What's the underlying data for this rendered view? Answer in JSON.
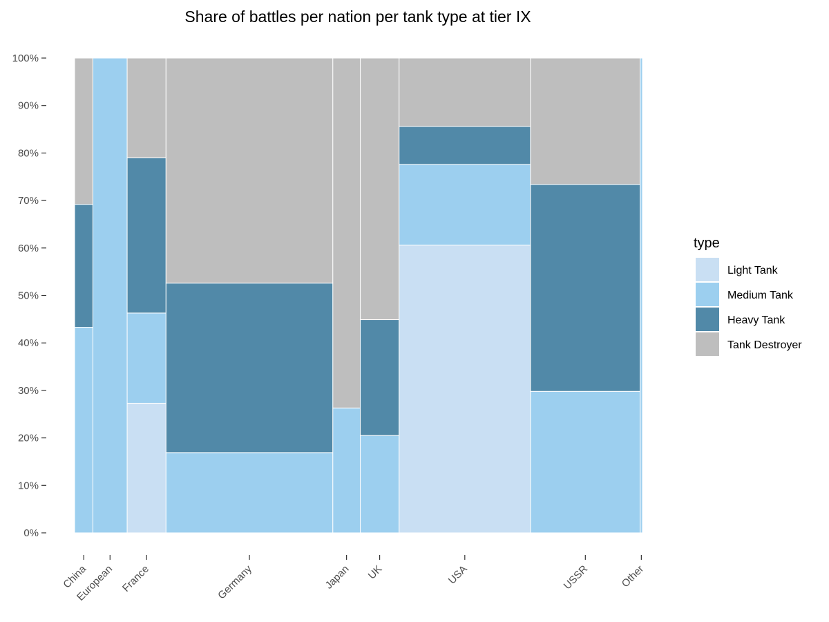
{
  "chart_data": {
    "type": "mosaic",
    "title": "Share of battles per nation per tank type at tier IX",
    "y_ticks": [
      "0%",
      "10%",
      "20%",
      "30%",
      "40%",
      "50%",
      "60%",
      "70%",
      "80%",
      "90%",
      "100%"
    ],
    "ylim": [
      0,
      100
    ],
    "grid": false,
    "legend": {
      "title": "type",
      "position": "right",
      "entries": [
        "Light Tank",
        "Medium Tank",
        "Heavy Tank",
        "Tank Destroyer"
      ]
    },
    "colors": {
      "Light Tank": "#c9dff3",
      "Medium Tank": "#9ccfef",
      "Heavy Tank": "#5189a8",
      "Tank Destroyer": "#bebebe"
    },
    "nations": [
      {
        "name": "China",
        "share": 3.2,
        "values": {
          "Light Tank": 0,
          "Medium Tank": 43.3,
          "Heavy Tank": 25.9,
          "Tank Destroyer": 30.8
        }
      },
      {
        "name": "European",
        "share": 6.0,
        "values": {
          "Light Tank": 0,
          "Medium Tank": 100,
          "Heavy Tank": 0,
          "Tank Destroyer": 0
        }
      },
      {
        "name": "France",
        "share": 6.8,
        "values": {
          "Light Tank": 27.3,
          "Medium Tank": 19.0,
          "Heavy Tank": 32.7,
          "Tank Destroyer": 21.0
        }
      },
      {
        "name": "Germany",
        "share": 29.2,
        "values": {
          "Light Tank": 0,
          "Medium Tank": 16.9,
          "Heavy Tank": 35.7,
          "Tank Destroyer": 47.4
        }
      },
      {
        "name": "Japan",
        "share": 4.8,
        "values": {
          "Light Tank": 0,
          "Medium Tank": 26.3,
          "Heavy Tank": 0,
          "Tank Destroyer": 73.7
        }
      },
      {
        "name": "UK",
        "share": 6.8,
        "values": {
          "Light Tank": 0,
          "Medium Tank": 20.5,
          "Heavy Tank": 24.4,
          "Tank Destroyer": 55.1
        }
      },
      {
        "name": "USA",
        "share": 23.0,
        "values": {
          "Light Tank": 60.6,
          "Medium Tank": 17.0,
          "Heavy Tank": 8.0,
          "Tank Destroyer": 14.4
        }
      },
      {
        "name": "USSR",
        "share": 19.2,
        "values": {
          "Light Tank": 0,
          "Medium Tank": 29.8,
          "Heavy Tank": 43.6,
          "Tank Destroyer": 26.6
        }
      },
      {
        "name": "Other",
        "share": 0.4,
        "values": {
          "Light Tank": 0,
          "Medium Tank": 100,
          "Heavy Tank": 0,
          "Tank Destroyer": 0
        }
      }
    ]
  }
}
